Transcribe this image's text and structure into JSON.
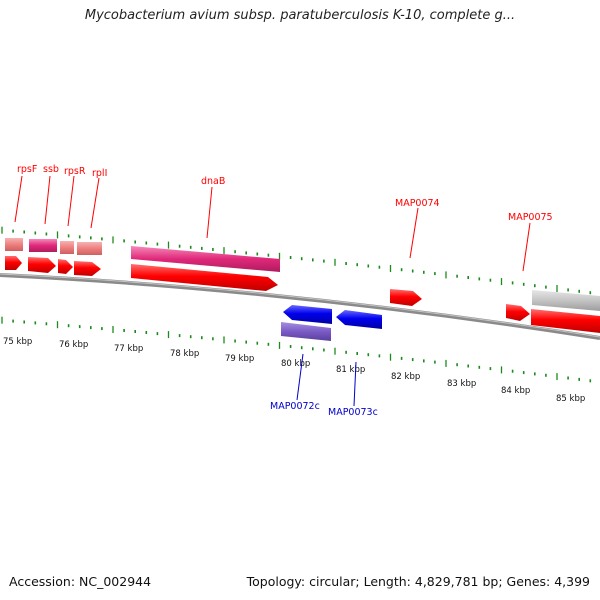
{
  "title": "Mycobacterium avium subsp. paratuberculosis K-10, complete g...",
  "footer": {
    "accession": "Accession: NC_002944",
    "topology": "Topology: circular; Length: 4,829,781 bp; Genes: 4,399"
  },
  "colors": {
    "forward": "#ff0000",
    "reverse": "#0000ee",
    "rrna": "#e8307c",
    "light": "#f08080",
    "purple": "#7d5cc6",
    "gray": "#c8c8c8",
    "tick": "#1c8a1c"
  },
  "scale": {
    "start_kbp": 75,
    "end_kbp": 85,
    "unit": "kbp"
  },
  "scale_labels": [
    "75 kbp",
    "76 kbp",
    "77 kbp",
    "78 kbp",
    "79 kbp",
    "80 kbp",
    "81 kbp",
    "82 kbp",
    "83 kbp",
    "84 kbp",
    "85 kbp"
  ],
  "genes": [
    {
      "label": "rpsF",
      "strand": "+",
      "color": "red"
    },
    {
      "label": "ssb",
      "strand": "+",
      "color": "red"
    },
    {
      "label": "rpsR",
      "strand": "+",
      "color": "red"
    },
    {
      "label": "rplI",
      "strand": "+",
      "color": "red"
    },
    {
      "label": "dnaB",
      "strand": "+",
      "color": "red"
    },
    {
      "label": "MAP0074",
      "strand": "+",
      "color": "red"
    },
    {
      "label": "MAP0075",
      "strand": "+",
      "color": "red"
    },
    {
      "label": "MAP0072c",
      "strand": "-",
      "color": "blue"
    },
    {
      "label": "MAP0073c",
      "strand": "-",
      "color": "blue"
    }
  ]
}
